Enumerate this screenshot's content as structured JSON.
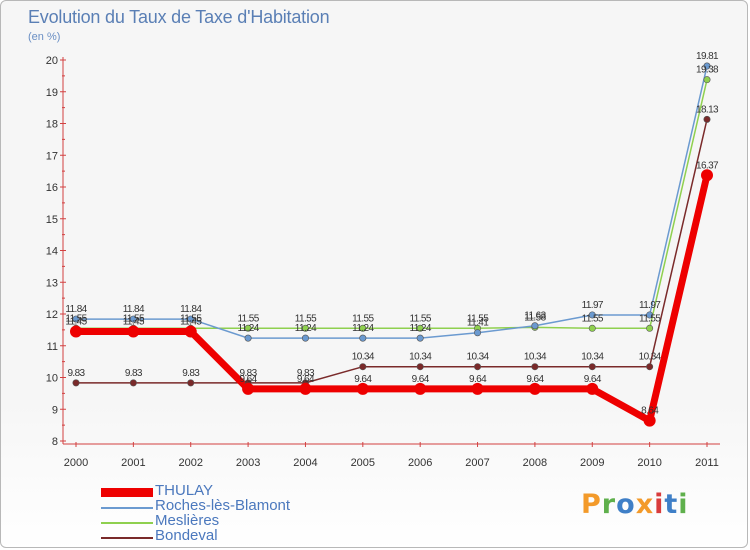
{
  "header": {
    "title": "Evolution du Taux de Taxe d'Habitation",
    "unit": "(en %)"
  },
  "branding": {
    "logo_text": "Proxiti",
    "logo_colors": [
      "#f39a2a",
      "#5fb04c",
      "#3f7fc7",
      "#f39a2a",
      "#d93c3c",
      "#3f7fc7",
      "#5fb04c"
    ]
  },
  "chart_data": {
    "type": "line",
    "title": "Evolution du Taux de Taxe d'Habitation",
    "ylabel": "(en %)",
    "xlabel": "",
    "x": [
      "2000",
      "2001",
      "2002",
      "2003",
      "2004",
      "2005",
      "2006",
      "2007",
      "2008",
      "2009",
      "2010",
      "2011"
    ],
    "ylim": [
      8,
      20
    ],
    "yticks": [
      "8",
      "9",
      "10",
      "11",
      "12",
      "13",
      "14",
      "15",
      "16",
      "17",
      "18",
      "19",
      "20"
    ],
    "series": [
      {
        "name": "THULAY",
        "color": "#ee0000",
        "values": [
          11.45,
          11.45,
          11.45,
          9.64,
          9.64,
          9.64,
          9.64,
          9.64,
          9.64,
          9.64,
          8.64,
          16.37
        ],
        "labels": [
          "11.45",
          "11.45",
          "11.45",
          "9.64",
          "9.64",
          "9.64",
          "9.64",
          "9.64",
          "9.64",
          "9.64",
          "8.64",
          "16.37"
        ]
      },
      {
        "name": "Roches-lès-Blamont",
        "color": "#6b9ad0",
        "values": [
          11.84,
          11.84,
          11.84,
          11.24,
          11.24,
          11.24,
          11.24,
          11.41,
          11.63,
          11.97,
          11.97,
          19.81
        ],
        "labels": [
          "11.84",
          "11.84",
          "11.84",
          "11.24",
          "11.24",
          "11.24",
          "11.24",
          "11.41",
          "11.63",
          "11.97",
          "11.97",
          "19.81"
        ]
      },
      {
        "name": "Meslières",
        "color": "#8fd04f",
        "values": [
          11.55,
          11.55,
          11.55,
          11.55,
          11.55,
          11.55,
          11.55,
          11.55,
          11.58,
          11.55,
          11.55,
          19.38
        ],
        "labels": [
          "11.55",
          "11.55",
          "11.55",
          "11.55",
          "11.55",
          "11.55",
          "11.55",
          "11.55",
          "11.58",
          "11.55",
          "11.55",
          "19.38"
        ]
      },
      {
        "name": "Bondeval",
        "color": "#7a2a2a",
        "values": [
          9.83,
          9.83,
          9.83,
          9.83,
          9.83,
          10.34,
          10.34,
          10.34,
          10.34,
          10.34,
          10.34,
          18.13
        ],
        "labels": [
          "9.83",
          "9.83",
          "9.83",
          "9.83",
          "9.83",
          "10.34",
          "10.34",
          "10.34",
          "10.34",
          "10.34",
          "10.34",
          "18.13"
        ]
      }
    ],
    "grid": false,
    "legend": "bottom-left"
  }
}
